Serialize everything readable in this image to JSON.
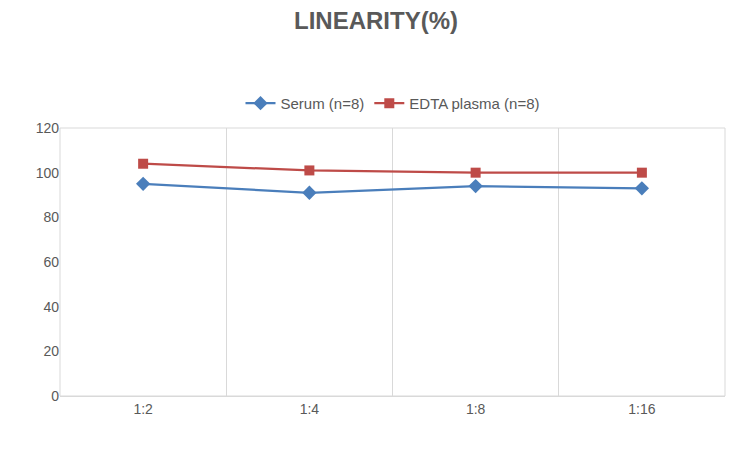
{
  "chart_data": {
    "type": "line",
    "title": "LINEARITY(%)",
    "categories": [
      "1:2",
      "1:4",
      "1:8",
      "1:16"
    ],
    "series": [
      {
        "name": "Serum (n=8)",
        "color": "#4a7ebb",
        "marker": "diamond",
        "line_style": "solid",
        "values": [
          95,
          91,
          94,
          93
        ]
      },
      {
        "name": "EDTA plasma (n=8)",
        "color": "#be4b48",
        "marker": "square",
        "line_style": "solid",
        "values": [
          104,
          101,
          100,
          100
        ]
      }
    ],
    "ylim": [
      0,
      120
    ],
    "yticks": [
      0,
      20,
      40,
      60,
      80,
      100,
      120
    ],
    "grid": true,
    "legend": "top"
  }
}
